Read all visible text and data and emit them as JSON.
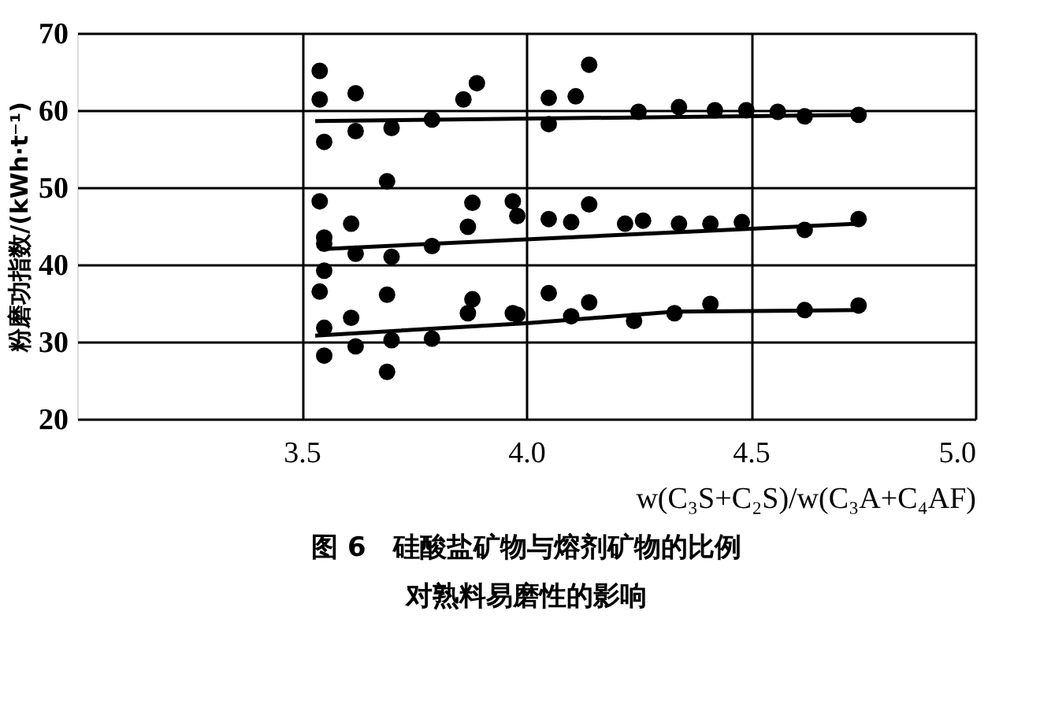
{
  "chart_data": {
    "type": "scatter",
    "title": "图 6　硅酸盐矿物与熔剂矿物的比例",
    "subtitle": "对熟料易磨性的影响",
    "xlabel": "w(C₃S+C₂S)/w(C₃A+C₄AF)",
    "ylabel": "粉磨功指数/(kWh·t⁻¹)",
    "xlim": [
      3.0,
      5.0
    ],
    "xticks": [
      3.5,
      {
        "value": 4,
        "label": "4.0"
      },
      4.5,
      {
        "value": 5,
        "label": "5.0"
      }
    ],
    "ylim": [
      20,
      70
    ],
    "yticks": [
      20,
      30,
      40,
      50,
      60,
      70
    ],
    "grid": true,
    "series": [
      {
        "color": "#000000",
        "marker": "circle",
        "x": [
          3.54,
          3.54,
          3.55,
          3.62,
          3.62,
          3.7,
          3.69,
          3.79,
          3.86,
          3.89,
          4.05,
          4.05,
          4.11,
          4.14,
          4.25,
          4.34,
          4.42,
          4.49,
          4.56,
          4.62,
          4.74,
          3.54,
          3.55,
          3.55,
          3.55,
          3.61,
          3.62,
          3.7,
          3.79,
          3.87,
          3.88,
          3.97,
          3.98,
          4.05,
          4.1,
          4.14,
          4.22,
          4.26,
          4.34,
          4.41,
          4.48,
          4.62,
          4.74,
          3.54,
          3.55,
          3.55,
          3.61,
          3.62,
          3.7,
          3.69,
          3.69,
          3.79,
          3.87,
          3.88,
          3.97,
          3.98,
          4.05,
          4.1,
          4.14,
          4.24,
          4.33,
          4.41,
          4.62,
          4.74
        ],
        "values": [
          65.1,
          61.4,
          55.9,
          62.2,
          57.3,
          57.7,
          50.8,
          58.8,
          61.4,
          63.5,
          61.6,
          58.2,
          61.8,
          65.9,
          59.8,
          60.4,
          60,
          60,
          59.8,
          59.2,
          59.4,
          48.2,
          43.5,
          42.7,
          39.2,
          45.3,
          41.4,
          41.0,
          42.4,
          44.9,
          48.0,
          48.2,
          46.3,
          45.9,
          45.5,
          47.8,
          45.3,
          45.7,
          45.3,
          45.3,
          45.5,
          44.5,
          45.9,
          36.5,
          31.8,
          28.2,
          33.1,
          29.4,
          30.2,
          36.1,
          26.1,
          30.4,
          33.7,
          35.5,
          33.7,
          33.5,
          36.3,
          33.3,
          35.1,
          32.7,
          33.7,
          34.9,
          34.1,
          34.7
        ]
      },
      {
        "type": "line",
        "color": "#000000",
        "x": [
          3.53,
          4.75
        ],
        "values": [
          58.6,
          59.4
        ]
      },
      {
        "type": "line",
        "color": "#000000",
        "x": [
          3.54,
          4.74
        ],
        "values": [
          42.0,
          45.3
        ]
      },
      {
        "type": "line",
        "color": "#000000",
        "x": [
          3.53,
          4.0,
          4.33,
          4.74
        ],
        "values": [
          30.8,
          32.4,
          33.9,
          34.1
        ]
      }
    ]
  }
}
